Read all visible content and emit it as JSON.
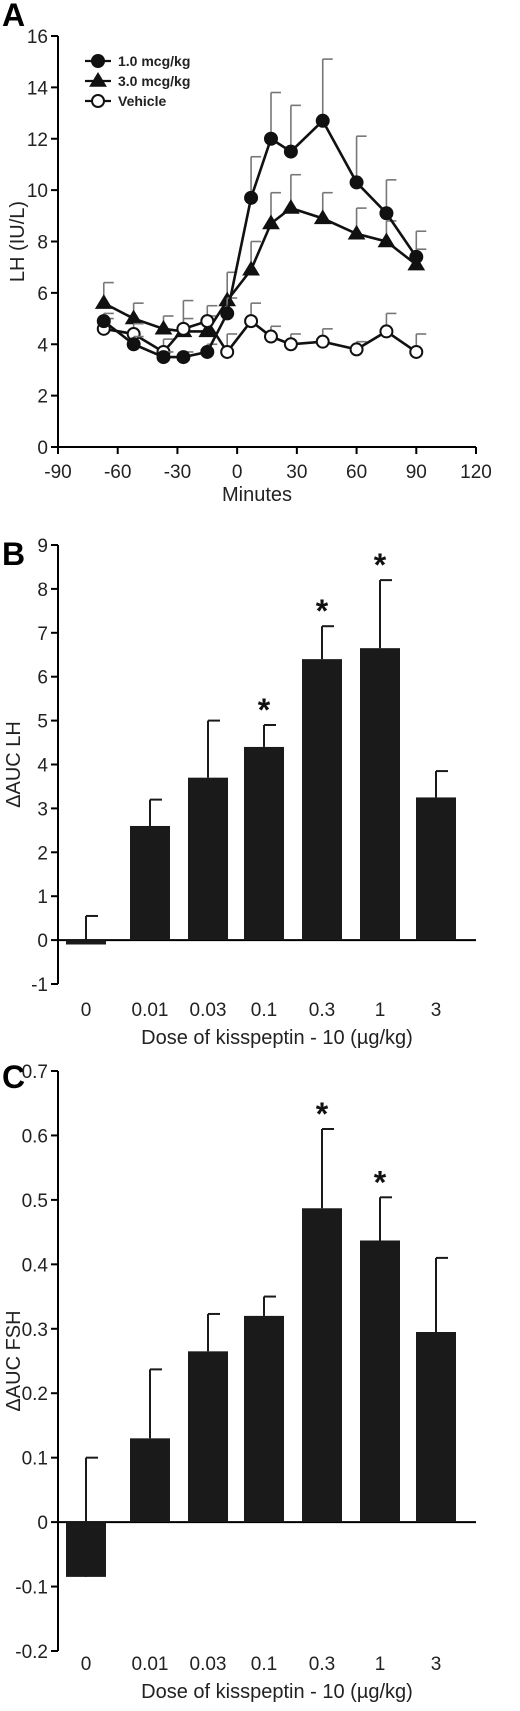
{
  "panels": [
    {
      "letter": "A"
    },
    {
      "letter": "B"
    },
    {
      "letter": "C"
    }
  ],
  "chart_data": [
    {
      "type": "line",
      "ylabel": "LH (IU/L)",
      "xlabel": "Minutes",
      "xlim": [
        -90,
        120
      ],
      "ylim": [
        0,
        16
      ],
      "xticks": [
        -90,
        -60,
        -30,
        0,
        30,
        60,
        90,
        120
      ],
      "yticks": [
        0,
        2,
        4,
        6,
        8,
        10,
        12,
        14,
        16
      ],
      "legend_position": "top-left",
      "series": [
        {
          "name": "1.0 mcg/kg",
          "marker": "filled-circle",
          "x": [
            -67,
            -52,
            -37,
            -27,
            -15,
            -5,
            7,
            17,
            27,
            43,
            60,
            75,
            90
          ],
          "y": [
            4.9,
            4.0,
            3.5,
            3.5,
            3.7,
            5.2,
            9.7,
            12.0,
            11.5,
            12.7,
            10.3,
            9.1,
            7.4
          ],
          "err": [
            0.3,
            0.3,
            0.2,
            0.2,
            0.3,
            0.6,
            1.6,
            1.8,
            1.8,
            2.4,
            1.8,
            1.3,
            1.0
          ]
        },
        {
          "name": "3.0 mcg/kg",
          "marker": "filled-triangle",
          "x": [
            -67,
            -52,
            -37,
            -27,
            -15,
            -5,
            7,
            17,
            27,
            43,
            60,
            75,
            90
          ],
          "y": [
            5.6,
            5.0,
            4.6,
            4.5,
            4.5,
            5.7,
            6.9,
            8.7,
            9.3,
            8.9,
            8.3,
            8.0,
            7.1
          ],
          "err": [
            0.8,
            0.6,
            0.5,
            0.5,
            0.6,
            1.1,
            1.1,
            1.2,
            1.3,
            1.0,
            1.0,
            0.8,
            0.6
          ]
        },
        {
          "name": "Vehicle",
          "marker": "open-circle",
          "x": [
            -67,
            -52,
            -37,
            -27,
            -15,
            -5,
            7,
            17,
            27,
            43,
            60,
            75,
            90
          ],
          "y": [
            4.6,
            4.4,
            3.7,
            4.6,
            4.9,
            3.7,
            4.9,
            4.3,
            4.0,
            4.1,
            3.8,
            4.5,
            3.7
          ],
          "err": [
            0.4,
            0.4,
            0.5,
            1.1,
            0.6,
            0.7,
            0.7,
            0.4,
            0.4,
            0.5,
            0.3,
            0.7,
            0.7
          ]
        }
      ]
    },
    {
      "type": "bar",
      "ylabel": "ΔAUC LH",
      "xlabel": "Dose of kisspeptin - 10 (µg/kg)",
      "categories": [
        "0",
        "0.01",
        "0.03",
        "0.1",
        "0.3",
        "1",
        "3"
      ],
      "values": [
        -0.1,
        2.6,
        3.7,
        4.4,
        6.4,
        6.65,
        3.25
      ],
      "err": [
        0.65,
        0.6,
        1.3,
        0.5,
        0.75,
        1.55,
        0.6
      ],
      "significant": [
        false,
        false,
        false,
        true,
        true,
        true,
        false
      ],
      "significance_marker": "*",
      "ylim": [
        -1,
        9
      ],
      "yticks": [
        -1,
        0,
        1,
        2,
        3,
        4,
        5,
        6,
        7,
        8,
        9
      ]
    },
    {
      "type": "bar",
      "ylabel": "ΔAUC FSH",
      "xlabel": "Dose of kisspeptin - 10 (µg/kg)",
      "categories": [
        "0",
        "0.01",
        "0.03",
        "0.1",
        "0.3",
        "1",
        "3"
      ],
      "values": [
        -0.085,
        0.13,
        0.265,
        0.32,
        0.487,
        0.437,
        0.295
      ],
      "err": [
        0.185,
        0.107,
        0.058,
        0.03,
        0.123,
        0.067,
        0.115
      ],
      "significant": [
        false,
        false,
        false,
        false,
        true,
        true,
        false
      ],
      "significance_marker": "*",
      "ylim": [
        -0.2,
        0.7
      ],
      "yticks": [
        -0.2,
        -0.1,
        0,
        0.1,
        0.2,
        0.3,
        0.4,
        0.5,
        0.6,
        0.7
      ]
    }
  ]
}
